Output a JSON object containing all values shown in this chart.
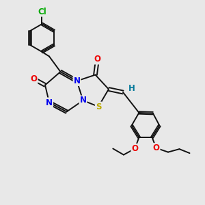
{
  "background_color": "#e8e8e8",
  "figure_size": [
    3.0,
    3.0
  ],
  "dpi": 100,
  "atom_colors": {
    "C": "#000000",
    "N": "#0000ee",
    "O": "#ee0000",
    "S": "#bbaa00",
    "Cl": "#00aa00",
    "H": "#007799"
  },
  "bond_color": "#111111",
  "bond_width": 1.4,
  "font_size_atom": 8.5
}
